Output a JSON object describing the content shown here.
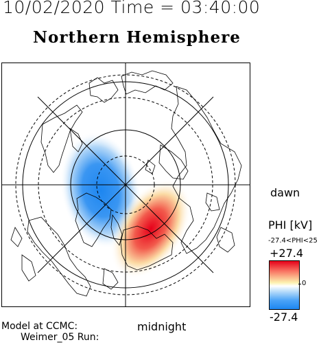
{
  "header": {
    "datetime": "10/02/2020 Time = 03:40:00",
    "title": "Northern Hemisphere"
  },
  "orientation": {
    "dawn_label": "dawn",
    "midnight_label": "midnight"
  },
  "colorbar": {
    "label": "PHI [kV]",
    "range_text": "-27.4<PHI<25",
    "max_label": "+27.4",
    "zero_label": "0",
    "min_label": "-27.4",
    "colors": {
      "positive": "#e6001a",
      "neutral": "#ffffff",
      "negative": "#1d86f0"
    }
  },
  "footer": {
    "model_line": "Model at CCMC:",
    "run_line": "Weimer_05 Run:"
  },
  "chart_data": {
    "type": "heatmap",
    "projection": "polar stereographic, geographic pole at center",
    "quantity": "PHI [kV]",
    "range": [
      -27.4,
      27.4
    ],
    "cells_kV": [
      {
        "region": "dusk-side convection cell (negative)",
        "value": -27.4
      },
      {
        "region": "dawn-side convection cell (positive)",
        "value": 25
      }
    ],
    "grid": true,
    "colorbar_position": "right"
  }
}
